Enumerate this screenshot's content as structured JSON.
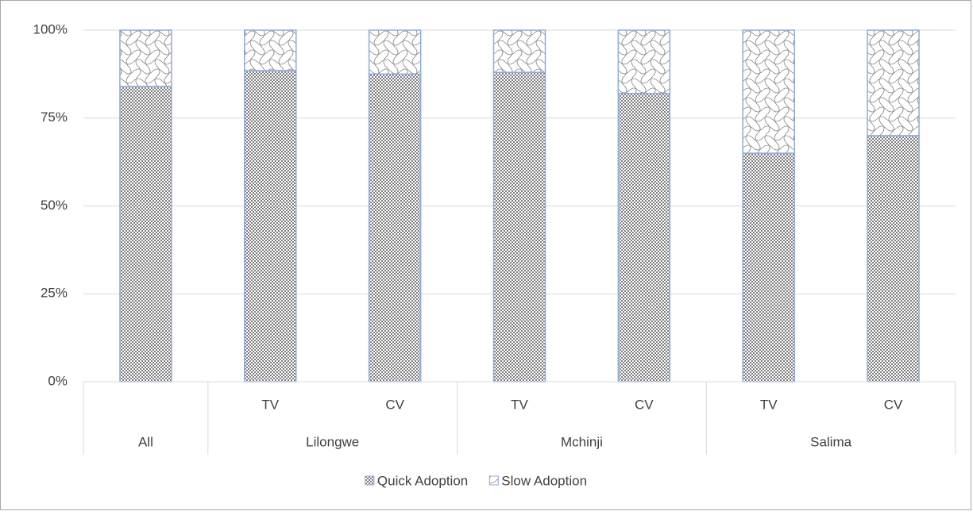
{
  "chart_data": {
    "type": "stacked_bar_100",
    "groups": [
      {
        "name": "All",
        "categories": [
          null
        ]
      },
      {
        "name": "Lilongwe",
        "categories": [
          "TV",
          "CV"
        ]
      },
      {
        "name": "Mchinji",
        "categories": [
          "TV",
          "CV"
        ]
      },
      {
        "name": "Salima",
        "categories": [
          "TV",
          "CV"
        ]
      }
    ],
    "series": [
      {
        "name": "Quick Adoption",
        "color": "#7f7f7f",
        "pattern": "checker",
        "values": [
          84,
          88.5,
          87.5,
          88,
          82,
          65,
          70
        ]
      },
      {
        "name": "Slow Adoption",
        "color": "#7f7f7f",
        "pattern": "wave",
        "values": [
          16,
          11.5,
          12.5,
          12,
          18,
          35,
          30
        ]
      }
    ],
    "bar_edge_color": "#8eaadb",
    "ylim": [
      0,
      100
    ],
    "yticks": [
      {
        "value": 0,
        "label": "0%"
      },
      {
        "value": 25,
        "label": "25%"
      },
      {
        "value": 50,
        "label": "50%"
      },
      {
        "value": 75,
        "label": "75%"
      },
      {
        "value": 100,
        "label": "100%"
      }
    ],
    "grid": true,
    "legend": "bottom"
  }
}
